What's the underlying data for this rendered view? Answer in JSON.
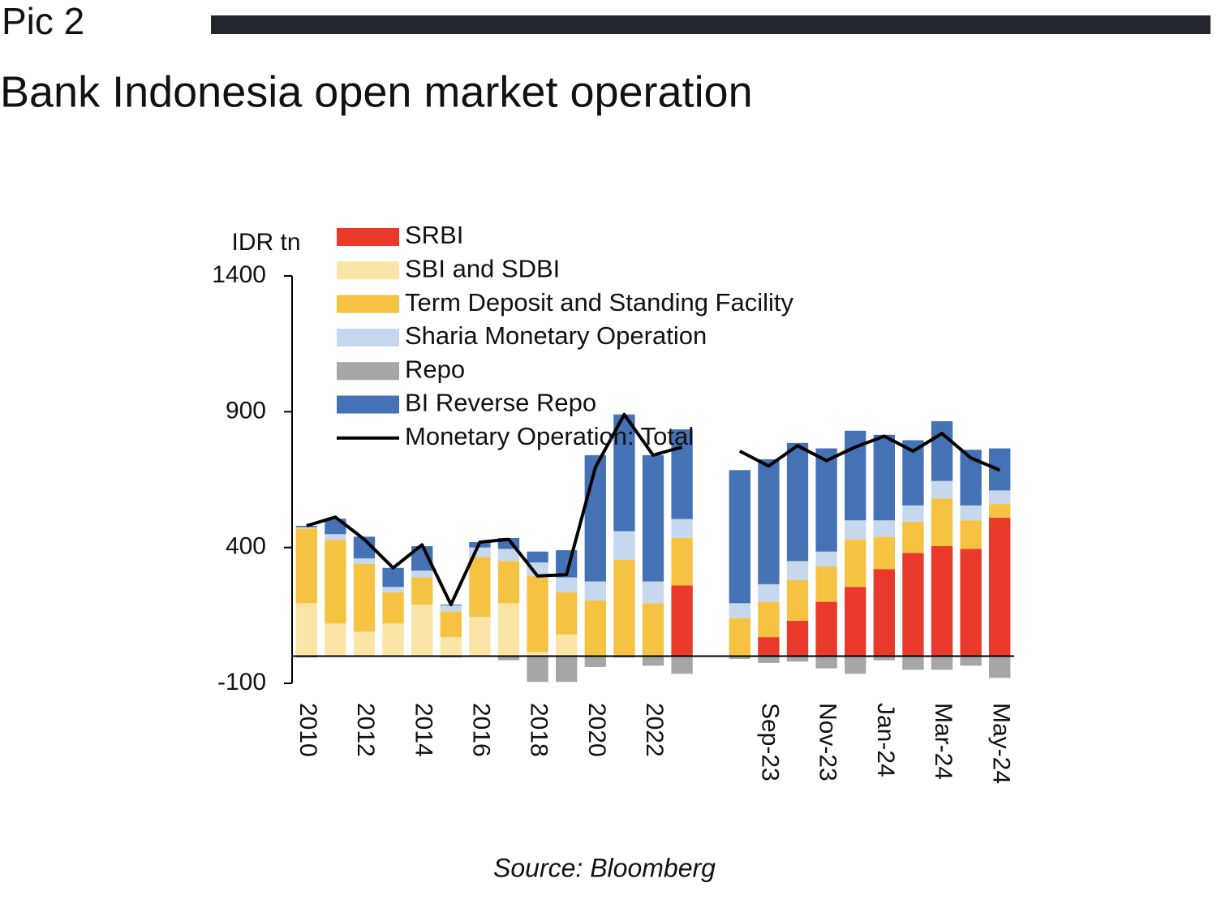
{
  "header": {
    "label": "Pic 2",
    "title": "Bank Indonesia open market operation"
  },
  "source": "Source: Bloomberg",
  "chart_data": {
    "type": "bar",
    "stacked": true,
    "y_label": "IDR tn",
    "ylim": [
      -100,
      1400
    ],
    "yticks": [
      -100,
      400,
      900,
      1400
    ],
    "categories": [
      "2010",
      null,
      "2012",
      null,
      "2014",
      null,
      "2016",
      null,
      "2018",
      null,
      "2020",
      null,
      "2022",
      null,
      null,
      null,
      "Sep-23",
      null,
      "Nov-23",
      null,
      "Jan-24",
      null,
      "Mar-24",
      null,
      "May-24"
    ],
    "series": [
      {
        "name": "SRBI",
        "color": "#e8392a",
        "values": [
          0,
          0,
          0,
          0,
          0,
          0,
          0,
          0,
          0,
          0,
          0,
          0,
          0,
          260,
          null,
          0,
          70,
          130,
          200,
          255,
          320,
          380,
          405,
          395,
          510
        ]
      },
      {
        "name": "SBI and SDBI",
        "color": "#fbe5a6",
        "values": [
          195,
          120,
          90,
          120,
          190,
          70,
          145,
          195,
          15,
          80,
          0,
          0,
          0,
          0,
          null,
          0,
          0,
          0,
          0,
          0,
          0,
          0,
          0,
          0,
          0
        ]
      },
      {
        "name": "Term Deposit and Standing Facility",
        "color": "#f5c242",
        "values": [
          275,
          308,
          250,
          115,
          100,
          95,
          220,
          155,
          280,
          155,
          205,
          355,
          195,
          175,
          null,
          140,
          130,
          150,
          130,
          175,
          120,
          115,
          175,
          105,
          50
        ]
      },
      {
        "name": "Sharia Monetary Operation",
        "color": "#c5d8ed",
        "values": [
          5,
          21,
          20,
          20,
          25,
          22,
          35,
          45,
          50,
          55,
          70,
          105,
          80,
          70,
          null,
          55,
          65,
          70,
          55,
          70,
          60,
          60,
          65,
          55,
          50
        ]
      },
      {
        "name": "Repo",
        "color": "#a6a6a6",
        "values": [
          -5,
          0,
          0,
          0,
          0,
          -5,
          0,
          -15,
          -95,
          -95,
          -40,
          -5,
          -35,
          -65,
          null,
          -10,
          -25,
          -20,
          -45,
          -65,
          -15,
          -50,
          -50,
          -35,
          -80
        ]
      },
      {
        "name": "BI Reverse Repo",
        "color": "#4472b5",
        "values": [
          5,
          57,
          80,
          70,
          90,
          3,
          20,
          40,
          40,
          100,
          465,
          430,
          465,
          330,
          null,
          490,
          460,
          435,
          380,
          330,
          315,
          240,
          220,
          205,
          155
        ]
      },
      {
        "name": "Monetary Operation: Total",
        "type": "line",
        "color": "#000000",
        "values": [
          480,
          512,
          430,
          325,
          410,
          190,
          420,
          430,
          295,
          300,
          695,
          890,
          740,
          770,
          null,
          755,
          700,
          775,
          720,
          770,
          810,
          755,
          820,
          730,
          685
        ]
      }
    ]
  }
}
